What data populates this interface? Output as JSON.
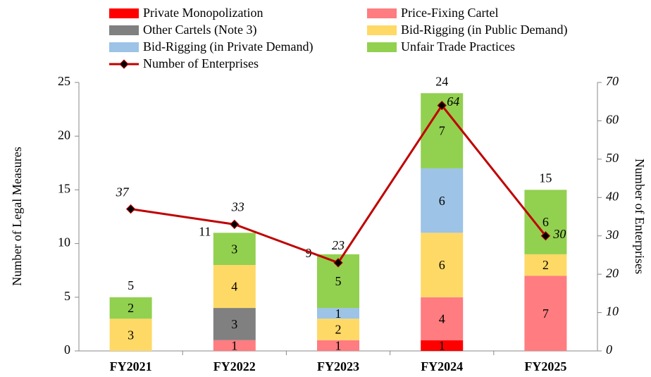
{
  "chart_data": {
    "type": "bar",
    "categories": [
      "FY2021",
      "FY2022",
      "FY2023",
      "FY2024",
      "FY2025"
    ],
    "series": [
      {
        "name": "Private Monopolization",
        "color": "#ff0000",
        "values": [
          0,
          0,
          0,
          1,
          0
        ]
      },
      {
        "name": "Price-Fixing Cartel",
        "color": "#ff7c80",
        "values": [
          0,
          1,
          1,
          4,
          7
        ]
      },
      {
        "name": "Other Cartels (Note 3)",
        "color": "#808080",
        "values": [
          0,
          3,
          0,
          0,
          0
        ]
      },
      {
        "name": "Bid-Rigging (in Public Demand)",
        "color": "#ffd966",
        "values": [
          3,
          4,
          2,
          6,
          2
        ]
      },
      {
        "name": "Bid-Rigging (in Private Demand)",
        "color": "#9dc3e6",
        "values": [
          0,
          0,
          1,
          6,
          0
        ]
      },
      {
        "name": "Unfair Trade Practices",
        "color": "#92d050",
        "values": [
          2,
          3,
          5,
          7,
          6
        ]
      },
      {
        "name": "Number of Enterprises",
        "type": "line",
        "axis": "y2",
        "color": "#c00000",
        "marker_color": "#000000",
        "values": [
          37,
          33,
          23,
          64,
          30
        ]
      }
    ],
    "totals": [
      5,
      11,
      9,
      24,
      15
    ],
    "y_label": "Number of Legal Measures",
    "y2_label": "Number of Enterprises",
    "ylim": [
      0,
      25
    ],
    "yticks": [
      0,
      5,
      10,
      15,
      20,
      25
    ],
    "y2lim": [
      0,
      70
    ],
    "y2ticks": [
      0,
      10,
      20,
      30,
      40,
      50,
      60,
      70
    ],
    "grid": false
  }
}
